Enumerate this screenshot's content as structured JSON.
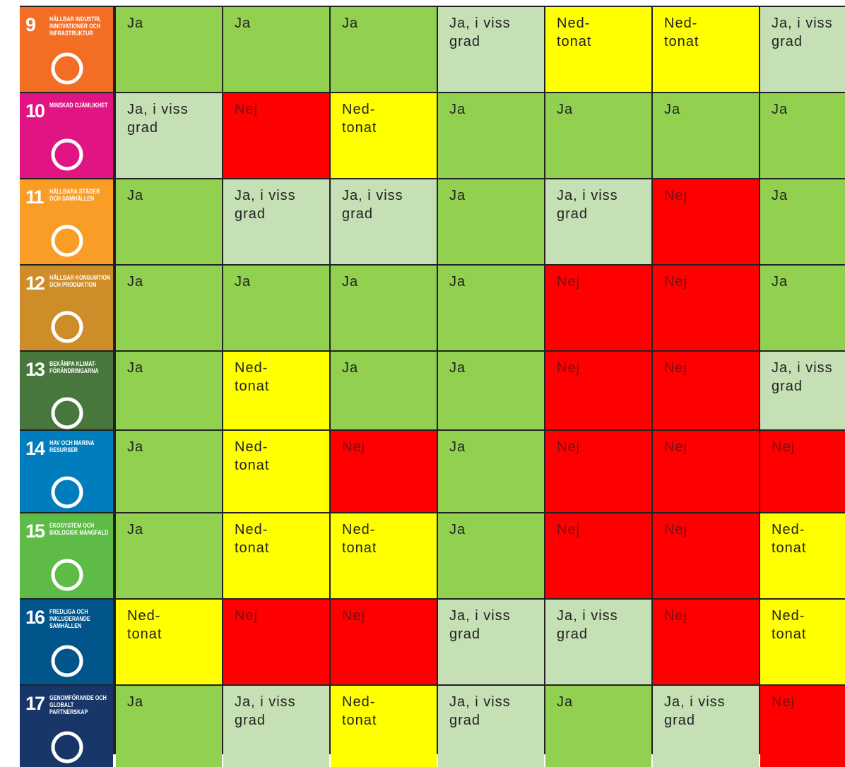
{
  "table": {
    "rows": [
      {
        "number": "9",
        "title": "HÅLLBAR INDUSTRI, INNOVATIONER OCH INFRASTRUKTUR",
        "cells": [
          "Ja",
          "Ja",
          "Ja",
          "Ja, i viss\ngrad",
          "Ned-\ntonat",
          "Ned-\ntonat",
          "Ja, i viss\ngrad"
        ]
      },
      {
        "number": "10",
        "title": "MINSKAD OJÄMLIKHET",
        "cells": [
          "Ja, i viss\ngrad",
          "Nej",
          "Ned-\ntonat",
          "Ja",
          "Ja",
          "Ja",
          "Ja"
        ]
      },
      {
        "number": "11",
        "title": "HÅLLBARA STÄDER OCH SAMHÄLLEN",
        "cells": [
          "Ja",
          "Ja, i viss\ngrad",
          "Ja, i viss\ngrad",
          "Ja",
          "Ja, i viss\ngrad",
          "Nej",
          "Ja"
        ]
      },
      {
        "number": "12",
        "title": "HÅLLBAR KONSUMTION OCH PRODUKTION",
        "cells": [
          "Ja",
          "Ja",
          "Ja",
          "Ja",
          "Nej",
          "Nej",
          "Ja"
        ]
      },
      {
        "number": "13",
        "title": "BEKÄMPA KLIMAT-FÖRÄNDRINGARNA",
        "cells": [
          "Ja",
          "Ned-\ntonat",
          "Ja",
          "Ja",
          "Nej",
          "Nej",
          "Ja, i viss\ngrad"
        ]
      },
      {
        "number": "14",
        "title": "HAV OCH MARINA RESURSER",
        "cells": [
          "Ja",
          "Ned-\ntonat",
          "Nej",
          "Ja",
          "Nej",
          "Nej",
          "Nej"
        ]
      },
      {
        "number": "15",
        "title": "EKOSYSTEM OCH BIOLOGISK MÅNGFALD",
        "cells": [
          "Ja",
          "Ned-\ntonat",
          "Ned-\ntonat",
          "Ja",
          "Nej",
          "Nej",
          "Ned-\ntonat"
        ]
      },
      {
        "number": "16",
        "title": "FREDLIGA OCH INKLUDERANDE SAMHÄLLEN",
        "cells": [
          "Ned-\ntonat",
          "Nej",
          "Nej",
          "Ja, i viss\ngrad",
          "Ja, i viss\ngrad",
          "Nej",
          "Ned-\ntonat"
        ]
      },
      {
        "number": "17",
        "title": "GENOMFÖRANDE OCH GLOBALT PARTNERSKAP",
        "cells": [
          "Ja",
          "Ja, i viss\ngrad",
          "Ned-\ntonat",
          "Ja, i viss\ngrad",
          "Ja",
          "Ja, i viss\ngrad",
          "Nej"
        ]
      }
    ]
  }
}
